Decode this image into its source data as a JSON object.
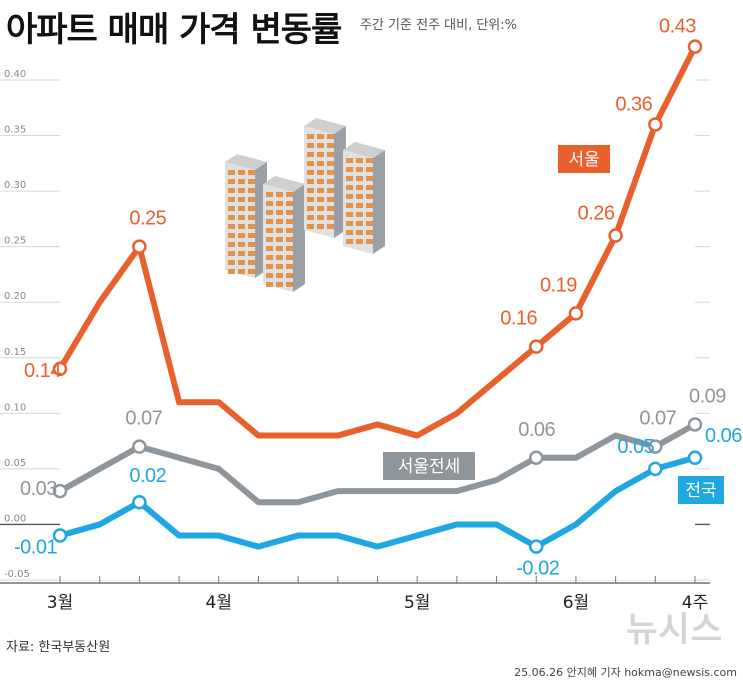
{
  "header": {
    "title": "아파트 매매 가격 변동률",
    "subtitle": "주간 기준 전주 대비, 단위:%"
  },
  "footer": {
    "source": "자료: 한국부동산원",
    "credit": "25.06.26 안지혜 기자 hokma@newsis.com",
    "watermark": "뉴시스"
  },
  "colors": {
    "seoul": "#e8602c",
    "seoul_jeonse": "#8f969b",
    "national": "#1ea7e0",
    "grid": "#d7d7d7",
    "axis_text": "#888888"
  },
  "icons": [
    "apartment-buildings-icon"
  ],
  "chart_data": {
    "type": "line",
    "title": "아파트 매매 가격 변동률",
    "subtitle": "주간 기준 전주 대비, 단위:%",
    "xlabel": "",
    "ylabel": "",
    "x_tick_labels": [
      "3월",
      "4월",
      "5월",
      "6월",
      "4주"
    ],
    "x_tick_index": [
      0,
      4,
      9,
      13,
      16
    ],
    "y_ticks": [
      "-0.05",
      "0.00",
      "0.05",
      "0.10",
      "0.15",
      "0.20",
      "0.25",
      "0.30",
      "0.35",
      "0.40"
    ],
    "ylim": [
      -0.05,
      0.4
    ],
    "grid": true,
    "series": [
      {
        "name": "서울",
        "values": [
          0.14,
          0.2,
          0.25,
          0.11,
          0.11,
          0.08,
          0.08,
          0.08,
          0.09,
          0.08,
          0.1,
          0.13,
          0.16,
          0.19,
          0.26,
          0.36,
          0.43
        ],
        "labels": [
          {
            "index": 0,
            "text": "0.14"
          },
          {
            "index": 2,
            "text": "0.25"
          },
          {
            "index": 12,
            "text": "0.16"
          },
          {
            "index": 13,
            "text": "0.19"
          },
          {
            "index": 14,
            "text": "0.26"
          },
          {
            "index": 15,
            "text": "0.36"
          },
          {
            "index": 16,
            "text": "0.43"
          }
        ]
      },
      {
        "name": "서울전세",
        "values": [
          0.03,
          0.05,
          0.07,
          0.06,
          0.05,
          0.02,
          0.02,
          0.03,
          0.03,
          0.03,
          0.03,
          0.04,
          0.06,
          0.06,
          0.08,
          0.07,
          0.09
        ],
        "labels": [
          {
            "index": 0,
            "text": "0.03"
          },
          {
            "index": 2,
            "text": "0.07"
          },
          {
            "index": 12,
            "text": "0.06"
          },
          {
            "index": 15,
            "text": "0.07"
          },
          {
            "index": 16,
            "text": "0.09"
          }
        ]
      },
      {
        "name": "전국",
        "values": [
          -0.01,
          0.0,
          0.02,
          -0.01,
          -0.01,
          -0.02,
          -0.01,
          -0.01,
          -0.02,
          -0.01,
          0.0,
          0.0,
          -0.02,
          0.0,
          0.03,
          0.05,
          0.06
        ],
        "labels": [
          {
            "index": 0,
            "text": "-0.01"
          },
          {
            "index": 2,
            "text": "0.02"
          },
          {
            "index": 12,
            "text": "-0.02"
          },
          {
            "index": 15,
            "text": "0.05"
          },
          {
            "index": 16,
            "text": "0.06"
          }
        ]
      }
    ],
    "markers": [
      {
        "series": 0,
        "index": [
          0,
          2,
          12,
          13,
          14,
          15,
          16
        ]
      },
      {
        "series": 1,
        "index": [
          0,
          2,
          12,
          15,
          16
        ]
      },
      {
        "series": 2,
        "index": [
          0,
          2,
          12,
          15,
          16
        ]
      }
    ]
  }
}
